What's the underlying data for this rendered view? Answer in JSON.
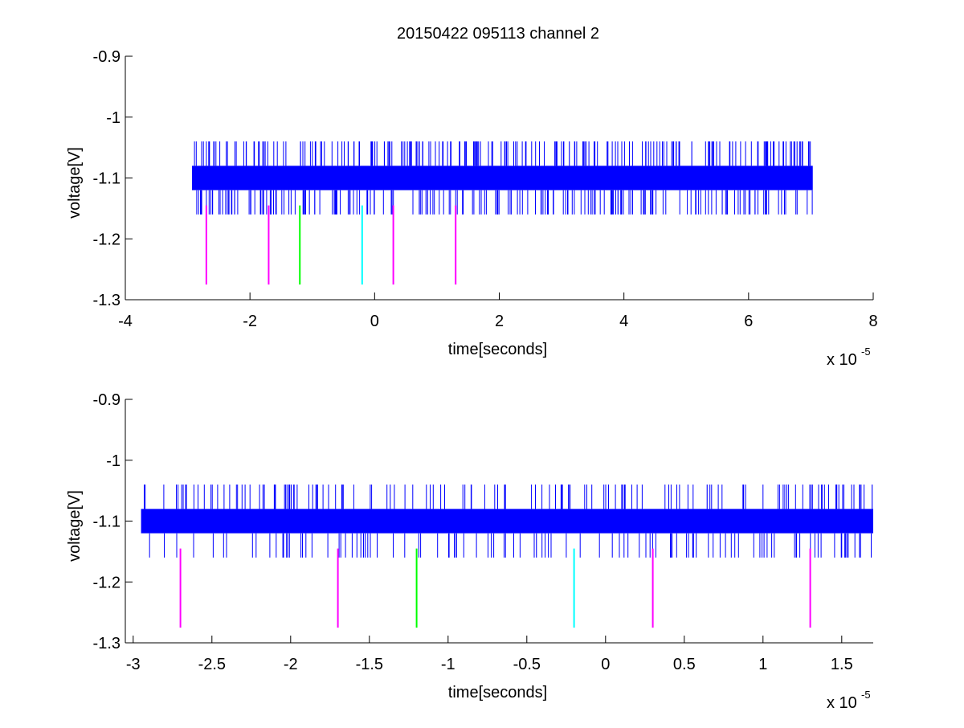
{
  "figure": {
    "title": "20150422 095113 channel 2"
  },
  "chart_data": [
    {
      "type": "line",
      "xlabel": "time[seconds]",
      "ylabel": "voltage[V]",
      "x_exponent_label": "x 10",
      "x_exponent": "-5",
      "xlim": [
        -4,
        8
      ],
      "ylim": [
        -1.3,
        -0.9
      ],
      "xticks": [
        -4,
        -2,
        0,
        2,
        4,
        6,
        8
      ],
      "xtick_labels": [
        "-4",
        "-2",
        "0",
        "2",
        "4",
        "6",
        "8"
      ],
      "yticks": [
        -0.9,
        -1.0,
        -1.1,
        -1.2,
        -1.3
      ],
      "ytick_labels": [
        "-0.9",
        "-1",
        "-1.1",
        "-1.2",
        "-1.3"
      ],
      "grid": false,
      "signal": {
        "name": "",
        "color": "#0000ff",
        "x_range": [
          -2.93,
          7.03
        ],
        "band": [
          -1.12,
          -1.08
        ],
        "spike_high": -1.04,
        "spike_low": -1.16,
        "spike_count": 420,
        "spike_seed": 7
      },
      "markers": [
        {
          "x": -2.7,
          "y_top": -1.145,
          "y_bottom": -1.275,
          "color": "#ff00ff"
        },
        {
          "x": -1.7,
          "y_top": -1.145,
          "y_bottom": -1.275,
          "color": "#ff00ff"
        },
        {
          "x": -1.2,
          "y_top": -1.145,
          "y_bottom": -1.275,
          "color": "#00ff00"
        },
        {
          "x": -0.2,
          "y_top": -1.145,
          "y_bottom": -1.275,
          "color": "#00ffff"
        },
        {
          "x": 0.3,
          "y_top": -1.145,
          "y_bottom": -1.275,
          "color": "#ff00ff"
        },
        {
          "x": 1.3,
          "y_top": -1.145,
          "y_bottom": -1.275,
          "color": "#ff00ff"
        }
      ]
    },
    {
      "type": "line",
      "xlabel": "time[seconds]",
      "ylabel": "voltage[V]",
      "x_exponent_label": "x 10",
      "x_exponent": "-5",
      "xlim": [
        -3.05,
        1.7
      ],
      "ylim": [
        -1.3,
        -0.9
      ],
      "xticks": [
        -3,
        -2.5,
        -2,
        -1.5,
        -1,
        -0.5,
        0,
        0.5,
        1,
        1.5
      ],
      "xtick_labels": [
        "-3",
        "-2.5",
        "-2",
        "-1.5",
        "-1",
        "-0.5",
        "0",
        "0.5",
        "1",
        "1.5"
      ],
      "yticks": [
        -0.9,
        -1.0,
        -1.1,
        -1.2,
        -1.3
      ],
      "ytick_labels": [
        "-0.9",
        "-1",
        "-1.1",
        "-1.2",
        "-1.3"
      ],
      "grid": false,
      "signal": {
        "name": "",
        "color": "#0000ff",
        "x_range": [
          -2.95,
          1.7
        ],
        "band": [
          -1.12,
          -1.08
        ],
        "spike_high": -1.04,
        "spike_low": -1.16,
        "spike_count": 260,
        "spike_seed": 13
      },
      "markers": [
        {
          "x": -2.7,
          "y_top": -1.145,
          "y_bottom": -1.275,
          "color": "#ff00ff"
        },
        {
          "x": -1.7,
          "y_top": -1.145,
          "y_bottom": -1.275,
          "color": "#ff00ff"
        },
        {
          "x": -1.2,
          "y_top": -1.145,
          "y_bottom": -1.275,
          "color": "#00ff00"
        },
        {
          "x": -0.2,
          "y_top": -1.145,
          "y_bottom": -1.275,
          "color": "#00ffff"
        },
        {
          "x": 0.3,
          "y_top": -1.145,
          "y_bottom": -1.275,
          "color": "#ff00ff"
        },
        {
          "x": 1.3,
          "y_top": -1.145,
          "y_bottom": -1.275,
          "color": "#ff00ff"
        }
      ]
    }
  ]
}
